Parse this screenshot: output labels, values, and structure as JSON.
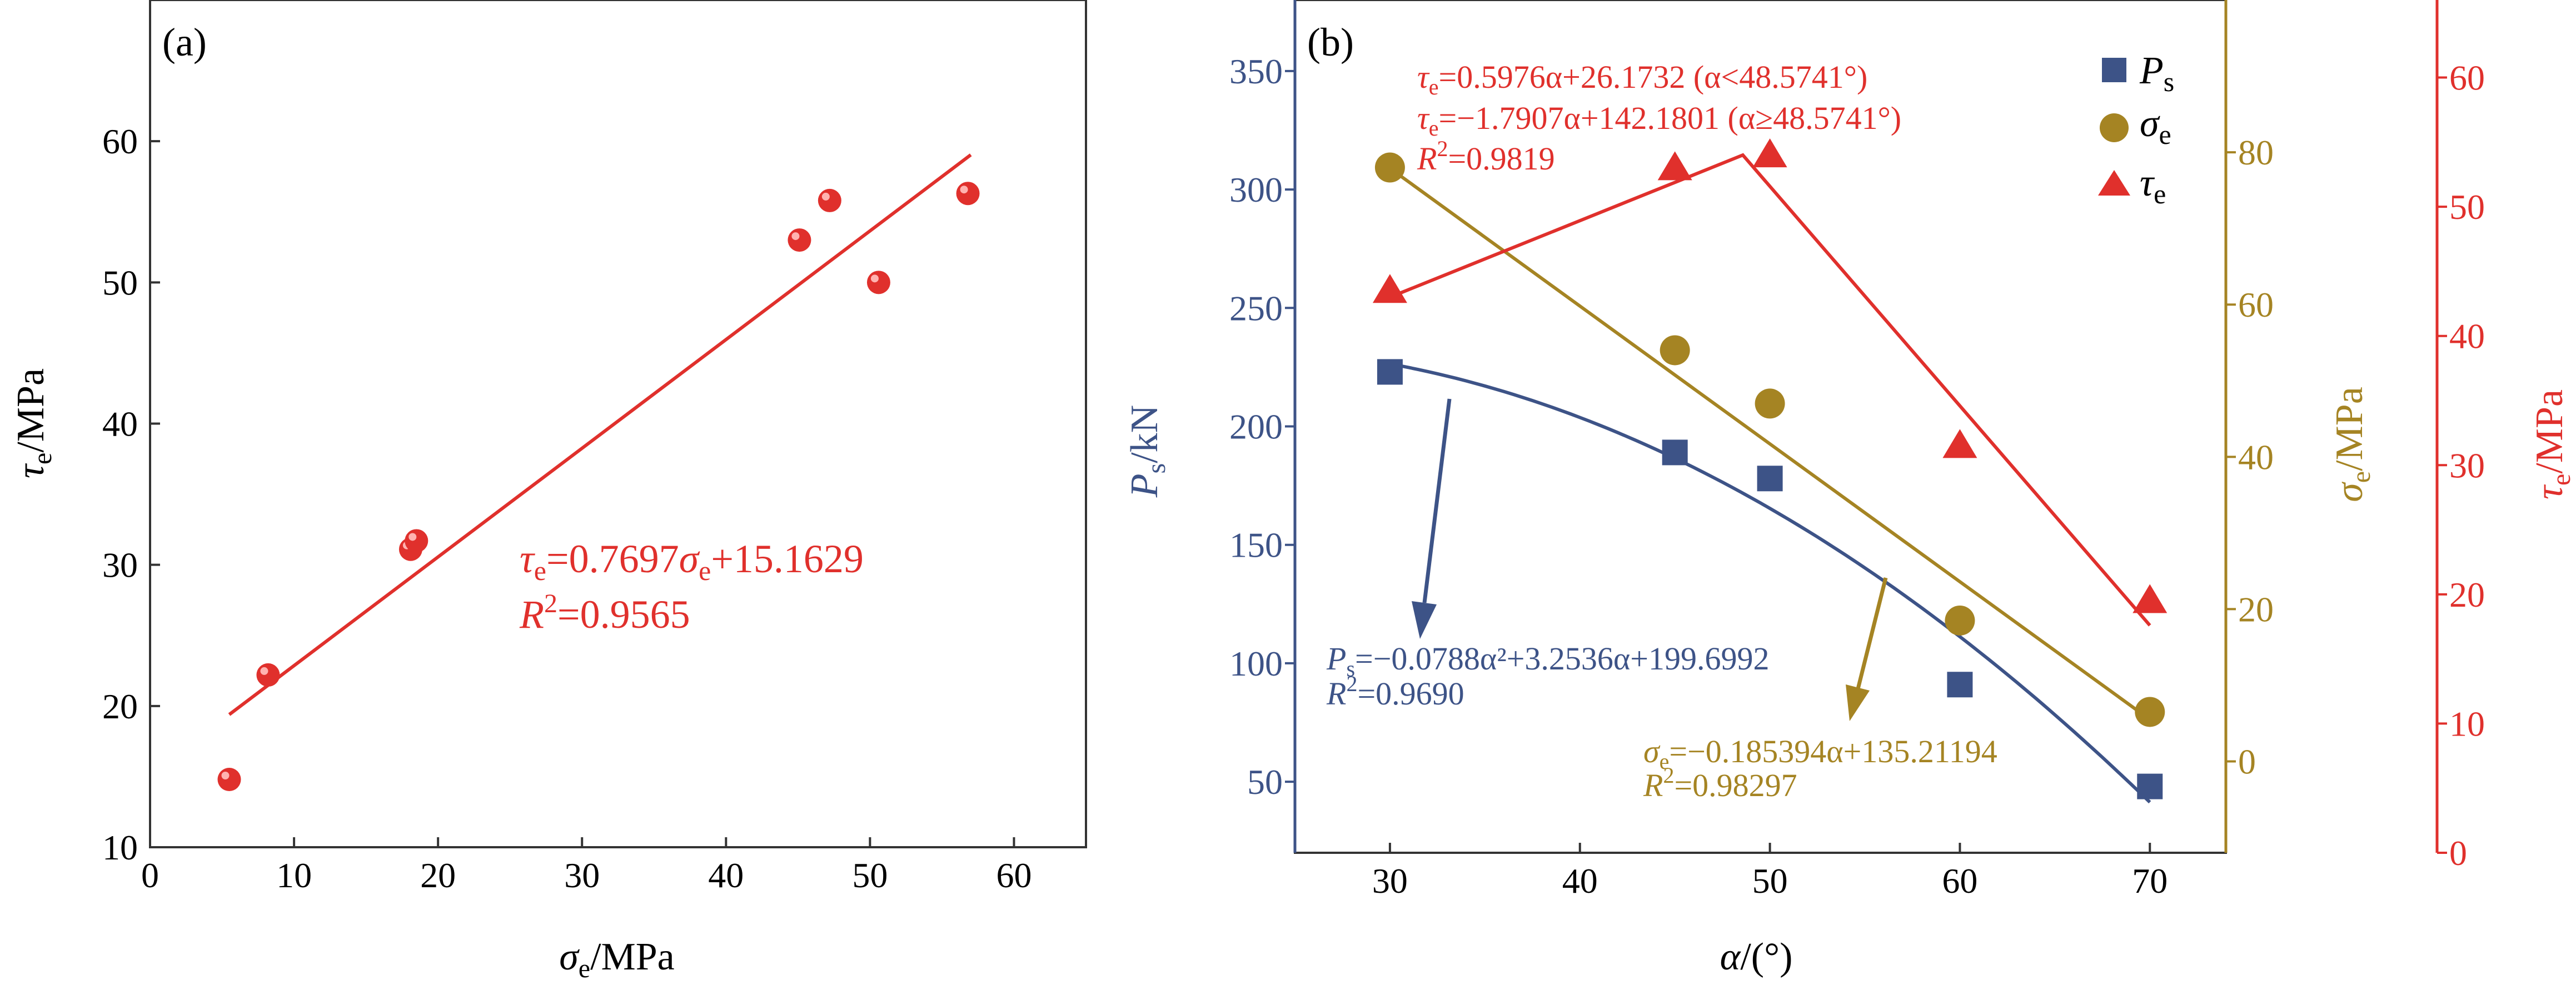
{
  "chart_data": [
    {
      "panel": "(a)",
      "type": "scatter",
      "xlabel": "σe/MPa",
      "ylabel": "τe/MPa",
      "xlim": [
        0,
        65
      ],
      "ylim": [
        10,
        70
      ],
      "xticks": [
        "0",
        "10",
        "20",
        "30",
        "40",
        "50",
        "60"
      ],
      "yticks": [
        "10",
        "20",
        "30",
        "40",
        "50",
        "60"
      ],
      "points": [
        {
          "x": 5.5,
          "y": 14.8
        },
        {
          "x": 8.2,
          "y": 22.2
        },
        {
          "x": 18.1,
          "y": 31.1
        },
        {
          "x": 18.5,
          "y": 31.7
        },
        {
          "x": 45.1,
          "y": 53.0
        },
        {
          "x": 47.2,
          "y": 55.8
        },
        {
          "x": 50.6,
          "y": 50.0
        },
        {
          "x": 56.8,
          "y": 56.3
        }
      ],
      "fit": {
        "x": [
          5.5,
          57
        ],
        "eq_tau": "τ",
        "eq_tau_sub": "e",
        "eq_mid": "=0.7697σ",
        "eq_sig_sub": "e",
        "eq_end": "+15.1629",
        "r2": "=0.9565"
      },
      "color": "#e0302c"
    },
    {
      "panel": "(b)",
      "type": "scatter",
      "xlabel": "α/(°)",
      "xlim": [
        25,
        74
      ],
      "xticks": [
        "30",
        "40",
        "50",
        "60",
        "70"
      ],
      "axes": {
        "ps": {
          "label": "Ps/kN",
          "lim": [
            20,
            380
          ],
          "ticks": [
            "50",
            "100",
            "150",
            "200",
            "250",
            "300",
            "350"
          ],
          "color": "#3d5387"
        },
        "sigma": {
          "label": "σe/MPa",
          "lim": [
            -12,
            100
          ],
          "ticks": [
            "0",
            "20",
            "40",
            "60",
            "80"
          ],
          "color": "#a58423"
        },
        "tau": {
          "label": "τe/MPa",
          "lim": [
            0,
            66
          ],
          "ticks": [
            "0",
            "10",
            "20",
            "30",
            "40",
            "50",
            "60"
          ],
          "color": "#e0302c"
        }
      },
      "series": [
        {
          "name": "Ps",
          "marker": "square",
          "axis": "ps",
          "x": [
            30,
            45,
            50,
            60,
            70
          ],
          "y": [
            223,
            189,
            178,
            91,
            48
          ]
        },
        {
          "name": "σe",
          "marker": "circle",
          "axis": "sigma",
          "x": [
            30,
            45,
            50,
            60,
            70
          ],
          "y": [
            78,
            54,
            47,
            18.5,
            6.5
          ]
        },
        {
          "name": "τe",
          "marker": "triangle",
          "axis": "tau",
          "x": [
            30,
            45,
            50,
            60,
            70
          ],
          "y": [
            43.5,
            53,
            54,
            31.5,
            19.5
          ]
        }
      ],
      "legend": {
        "position": "top-right",
        "entries": [
          "P",
          "σ",
          "τ"
        ],
        "subs": [
          "s",
          "e",
          "e"
        ]
      },
      "annotations": {
        "tau_eq1": "=0.5976α+26.1732 (α<48.5741°)",
        "tau_eq2": "=−1.7907α+142.1801 (α≥48.5741°)",
        "tau_r2": "=0.9819",
        "ps_eq": "=−0.0788α²+3.2536α+199.6992",
        "ps_r2": "=0.9690",
        "sig_eq": "=−0.185394α+135.21194",
        "sig_r2": "=0.98297"
      }
    }
  ]
}
